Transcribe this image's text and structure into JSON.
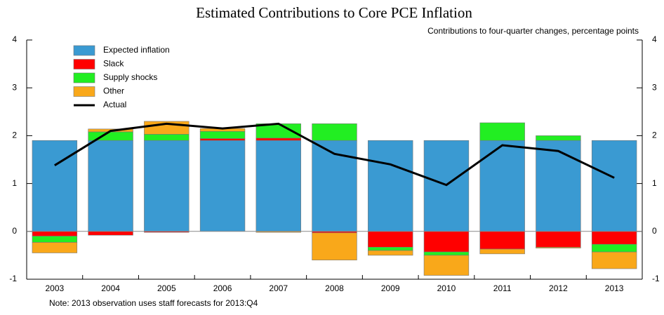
{
  "chart_data": {
    "type": "bar",
    "stacked": true,
    "title": "Estimated Contributions to Core PCE Inflation",
    "subtitle": "Contributions to four-quarter changes, percentage points",
    "note": "Note: 2013 observation uses staff forecasts for 2013:Q4",
    "categories": [
      "2003",
      "2004",
      "2005",
      "2006",
      "2007",
      "2008",
      "2009",
      "2010",
      "2011",
      "2012",
      "2013"
    ],
    "series": [
      {
        "name": "Expected inflation",
        "type": "bar",
        "color": "#3a9ad2",
        "values": [
          1.9,
          1.9,
          1.9,
          1.9,
          1.9,
          1.9,
          1.9,
          1.9,
          1.9,
          1.9,
          1.9
        ]
      },
      {
        "name": "Slack",
        "type": "bar",
        "color": "#ff0000",
        "values": [
          -0.1,
          -0.08,
          -0.02,
          0.04,
          0.05,
          -0.03,
          -0.33,
          -0.43,
          -0.37,
          -0.33,
          -0.27
        ]
      },
      {
        "name": "Supply shocks",
        "type": "bar",
        "color": "#22ee22",
        "values": [
          -0.13,
          0.18,
          0.13,
          0.15,
          0.3,
          0.35,
          -0.07,
          -0.07,
          0.37,
          0.1,
          -0.16
        ]
      },
      {
        "name": "Other",
        "type": "bar",
        "color": "#f9a81a",
        "values": [
          -0.22,
          0.06,
          0.27,
          0.06,
          -0.02,
          -0.57,
          -0.1,
          -0.42,
          -0.1,
          -0.02,
          -0.35
        ]
      },
      {
        "name": "Actual",
        "type": "line",
        "color": "#000000",
        "values": [
          1.38,
          2.1,
          2.25,
          2.15,
          2.25,
          1.62,
          1.4,
          0.97,
          1.8,
          1.68,
          1.12
        ]
      }
    ],
    "ylim": [
      -1,
      4
    ],
    "yticks": [
      -1,
      0,
      1,
      2,
      3,
      4
    ],
    "legend": "upper-left"
  }
}
